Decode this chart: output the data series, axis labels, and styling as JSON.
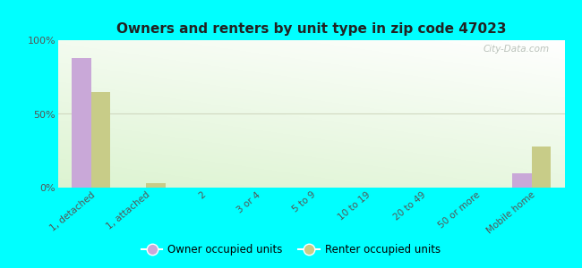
{
  "title": "Owners and renters by unit type in zip code 47023",
  "categories": [
    "1, detached",
    "1, attached",
    "2",
    "3 or 4",
    "5 to 9",
    "10 to 19",
    "20 to 49",
    "50 or more",
    "Mobile home"
  ],
  "owner_values": [
    88,
    0,
    0,
    0,
    0,
    0,
    0,
    0,
    10
  ],
  "renter_values": [
    65,
    3,
    0,
    0,
    0,
    0,
    0,
    0,
    28
  ],
  "owner_color": "#c9a8d8",
  "renter_color": "#c8cc88",
  "bg_color": "#00ffff",
  "ylabel_ticks": [
    "0%",
    "50%",
    "100%"
  ],
  "ytick_vals": [
    0,
    50,
    100
  ],
  "watermark": "City-Data.com",
  "bar_width": 0.35,
  "grad_colors": [
    "#c8dda0",
    "#f0f8e8",
    "#ffffff"
  ],
  "grid_color": "#e0e8d0"
}
